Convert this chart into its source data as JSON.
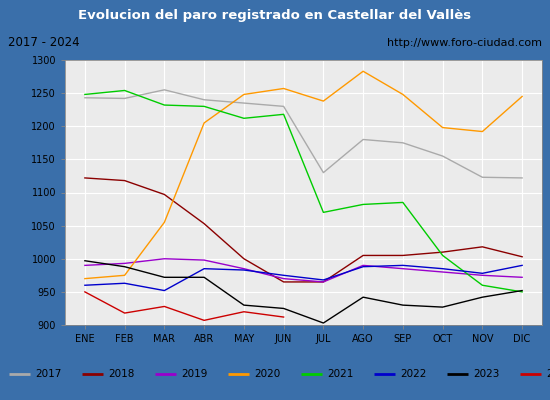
{
  "title": "Evolucion del paro registrado en Castellar del Vallès",
  "subtitle_left": "2017 - 2024",
  "subtitle_right": "http://www.foro-ciudad.com",
  "xlabel_months": [
    "ENE",
    "FEB",
    "MAR",
    "ABR",
    "MAY",
    "JUN",
    "JUL",
    "AGO",
    "SEP",
    "OCT",
    "NOV",
    "DIC"
  ],
  "ylim": [
    900,
    1300
  ],
  "yticks": [
    900,
    950,
    1000,
    1050,
    1100,
    1150,
    1200,
    1250,
    1300
  ],
  "series": {
    "2017": {
      "color": "#aaaaaa",
      "data": [
        1243,
        1242,
        1255,
        1240,
        1235,
        1230,
        1130,
        1180,
        1175,
        1155,
        1123,
        1122
      ]
    },
    "2018": {
      "color": "#8b0000",
      "data": [
        1122,
        1118,
        1097,
        1053,
        1000,
        965,
        965,
        1005,
        1005,
        1010,
        1018,
        1003
      ]
    },
    "2019": {
      "color": "#9900cc",
      "data": [
        990,
        993,
        1000,
        998,
        985,
        970,
        965,
        990,
        985,
        980,
        975,
        972
      ]
    },
    "2020": {
      "color": "#ff9900",
      "data": [
        970,
        975,
        1055,
        1205,
        1248,
        1257,
        1238,
        1283,
        1248,
        1198,
        1192,
        1245
      ]
    },
    "2021": {
      "color": "#00cc00",
      "data": [
        1248,
        1254,
        1232,
        1230,
        1212,
        1218,
        1070,
        1082,
        1085,
        1005,
        960,
        950
      ]
    },
    "2022": {
      "color": "#0000cc",
      "data": [
        960,
        963,
        952,
        985,
        983,
        975,
        968,
        988,
        990,
        985,
        978,
        990
      ]
    },
    "2023": {
      "color": "#000000",
      "data": [
        997,
        988,
        972,
        972,
        930,
        925,
        903,
        942,
        930,
        927,
        942,
        952
      ]
    },
    "2024": {
      "color": "#cc0000",
      "data": [
        950,
        918,
        928,
        907,
        920,
        912,
        null,
        null,
        null,
        null,
        null,
        null
      ]
    }
  },
  "title_bg": "#4d8fc4",
  "title_color": "#ffffff",
  "subtitle_bg": "#e0e0e0",
  "plot_bg": "#ebebeb",
  "grid_color": "#ffffff",
  "fig_bg": "#3a6faa",
  "legend_bg": "#f5f5f5"
}
